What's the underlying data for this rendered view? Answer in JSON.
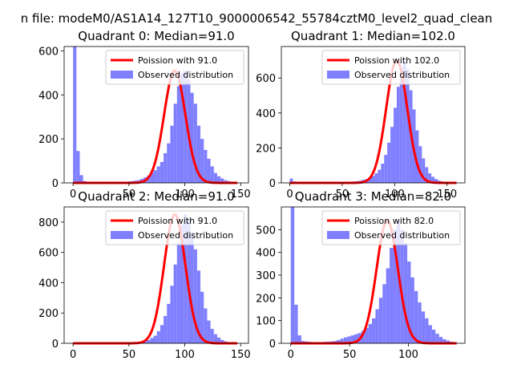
{
  "suptitle": "n file: modeM0/AS1A14_127T10_9000006542_55784cztM0_level2_quad_clean",
  "legend": {
    "line_label_prefix": "Poission with ",
    "bar_label": "Observed distribution"
  },
  "colors": {
    "line": "#ff0000",
    "hist": "#8080ff"
  },
  "chart_data": [
    {
      "type": "bar",
      "title": "Quadrant 0: Median=91.0",
      "median": 91.0,
      "line_label": "Poission with 91.0",
      "xlim": [
        -8,
        157
      ],
      "ylim": [
        0,
        620
      ],
      "xticks": [
        0,
        50,
        100,
        150
      ],
      "yticks": [
        0,
        200,
        400,
        600
      ],
      "bin_width": 3,
      "bins_start": 0,
      "counts": [
        620,
        145,
        35,
        8,
        5,
        4,
        3,
        3,
        3,
        4,
        3,
        3,
        4,
        4,
        4,
        5,
        6,
        8,
        10,
        12,
        18,
        25,
        33,
        45,
        58,
        75,
        95,
        135,
        180,
        260,
        360,
        440,
        500,
        510,
        470,
        410,
        360,
        260,
        200,
        150,
        110,
        75,
        45,
        30,
        20,
        12,
        8,
        5,
        3
      ]
    },
    {
      "type": "bar",
      "title": "Quadrant 1: Median=102.0",
      "median": 102.0,
      "line_label": "Poission with 102.0",
      "xlim": [
        -8,
        167
      ],
      "ylim": [
        0,
        780
      ],
      "xticks": [
        0,
        50,
        100,
        150
      ],
      "yticks": [
        0,
        200,
        400,
        600
      ],
      "bin_width": 3,
      "bins_start": 0,
      "counts": [
        25,
        8,
        4,
        3,
        3,
        3,
        3,
        3,
        3,
        3,
        3,
        3,
        3,
        3,
        3,
        3,
        4,
        4,
        5,
        6,
        8,
        10,
        13,
        18,
        22,
        30,
        40,
        55,
        75,
        110,
        160,
        230,
        320,
        430,
        550,
        660,
        700,
        650,
        530,
        420,
        300,
        210,
        140,
        90,
        55,
        35,
        22,
        13,
        8,
        5,
        3,
        2,
        2
      ]
    },
    {
      "type": "bar",
      "title": "Quadrant 2: Median=91.0",
      "median": 91.0,
      "line_label": "Poission with 91.0",
      "xlim": [
        -8,
        157
      ],
      "ylim": [
        0,
        900
      ],
      "xticks": [
        0,
        50,
        100,
        150
      ],
      "yticks": [
        0,
        200,
        400,
        600,
        800
      ],
      "bin_width": 3,
      "bins_start": 0,
      "counts": [
        3,
        3,
        3,
        3,
        3,
        3,
        3,
        3,
        3,
        3,
        3,
        3,
        3,
        3,
        3,
        3,
        3,
        4,
        5,
        6,
        10,
        15,
        22,
        35,
        50,
        80,
        120,
        180,
        260,
        380,
        520,
        660,
        780,
        850,
        820,
        730,
        620,
        480,
        340,
        230,
        150,
        95,
        60,
        38,
        22,
        13,
        8,
        5,
        3
      ]
    },
    {
      "type": "bar",
      "title": "Quadrant 3: Median=82.0",
      "median": 82.0,
      "line_label": "Poission with 82.0",
      "xlim": [
        -8,
        148
      ],
      "ylim": [
        0,
        600
      ],
      "xticks": [
        0,
        50,
        100
      ],
      "yticks": [
        0,
        100,
        200,
        300,
        400,
        500
      ],
      "bin_width": 3,
      "bins_start": 0,
      "counts": [
        600,
        170,
        35,
        10,
        8,
        6,
        5,
        5,
        5,
        6,
        7,
        8,
        10,
        14,
        20,
        26,
        30,
        35,
        40,
        45,
        55,
        68,
        85,
        110,
        150,
        200,
        260,
        330,
        420,
        500,
        540,
        500,
        440,
        360,
        290,
        230,
        180,
        140,
        110,
        80,
        60,
        42,
        28,
        18,
        12,
        7,
        4
      ]
    }
  ]
}
